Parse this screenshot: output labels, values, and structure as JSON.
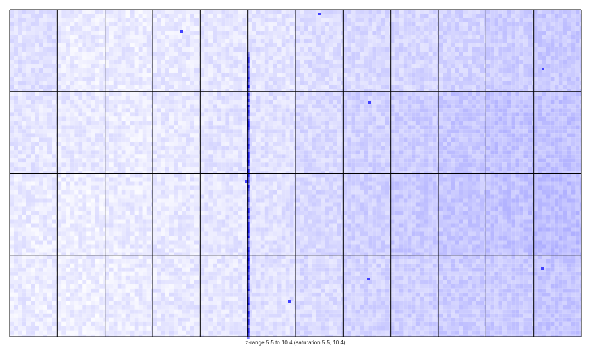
{
  "chart_data": {
    "type": "heatmap",
    "title": "",
    "xlabel": "",
    "ylabel": "",
    "grid": true,
    "panel_rows": 4,
    "panel_cols": 12,
    "z_range": [
      5.5,
      10.4
    ],
    "saturation": [
      5.5,
      10.4
    ],
    "colormap": {
      "low": "#ffffff",
      "high": "#0000ff"
    },
    "caption": "z-range 5.5 to 10.4 (saturation 5.5, 10.4)",
    "panel_mean_intensity": [
      [
        0.12,
        0.08,
        0.08,
        0.09,
        0.1,
        0.11,
        0.13,
        0.15,
        0.16,
        0.17,
        0.19,
        0.21
      ],
      [
        0.1,
        0.09,
        0.08,
        0.09,
        0.11,
        0.12,
        0.15,
        0.18,
        0.2,
        0.22,
        0.24,
        0.24
      ],
      [
        0.08,
        0.07,
        0.08,
        0.09,
        0.1,
        0.12,
        0.15,
        0.18,
        0.21,
        0.22,
        0.24,
        0.26
      ],
      [
        0.08,
        0.07,
        0.08,
        0.09,
        0.1,
        0.12,
        0.14,
        0.17,
        0.19,
        0.2,
        0.21,
        0.23
      ]
    ]
  },
  "colors": {
    "grid_line": "#000000",
    "background": "#ffffff"
  }
}
